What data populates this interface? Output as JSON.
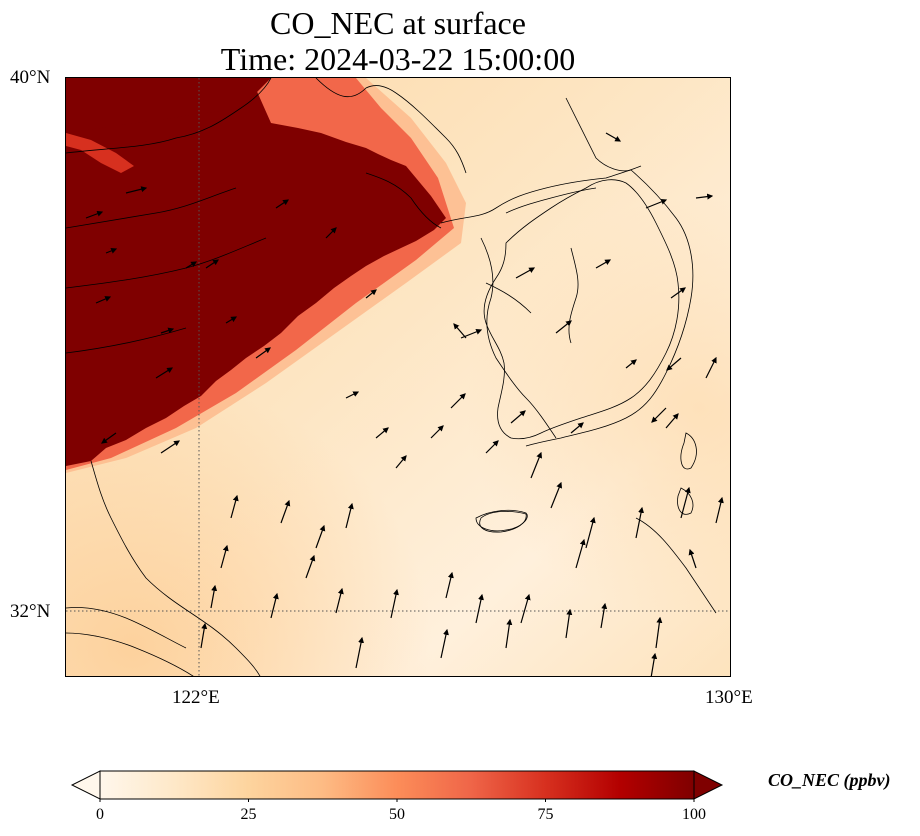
{
  "title": {
    "line1": "CO_NEC at surface",
    "line2": "Time: 2024-03-22 15:00:00"
  },
  "map": {
    "projection": "plate-carree",
    "lon_range": [
      119.75,
      130.0
    ],
    "lat_range": [
      31.0,
      40.0
    ],
    "gridlines": "dotted",
    "lat_ticks": [
      {
        "value": 40,
        "label": "40°N"
      },
      {
        "value": 32,
        "label": "32°N"
      }
    ],
    "lon_ticks": [
      {
        "value": 122,
        "label": "122°E"
      },
      {
        "value": 130,
        "label": "130°E"
      }
    ],
    "field": "CO_NEC",
    "pattern": "Saturated plume (>=100 ppbv) over northeastern China and the Yellow Sea northwest of a diagonal boundary; background ~10-30 ppbv elsewhere",
    "wind_vectors": "northerly/northwesterly over land to the north-west, southerly over the East China Sea and south of Korea"
  },
  "colorbar": {
    "label": "CO_NEC (ppbv)",
    "min": 0,
    "max": 100,
    "extend": "both",
    "cmap": "OrRd",
    "colors": [
      "#fff7ec",
      "#fee8c8",
      "#fdd49e",
      "#fdbb84",
      "#fc8d59",
      "#ef6548",
      "#d7301f",
      "#b30000",
      "#7f0000"
    ],
    "ticks": [
      {
        "value": 0,
        "label": "0"
      },
      {
        "value": 25,
        "label": "25"
      },
      {
        "value": 50,
        "label": "50"
      },
      {
        "value": 75,
        "label": "75"
      },
      {
        "value": 100,
        "label": "100"
      }
    ]
  }
}
